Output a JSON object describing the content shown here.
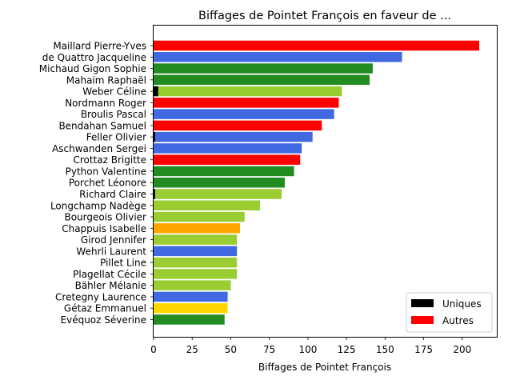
{
  "chart_data": {
    "type": "bar",
    "orientation": "horizontal",
    "title": "Biffages de Pointet François en faveur de ...",
    "xlabel": "Biffages de Pointet François",
    "ylabel": "",
    "xlim": [
      0,
      220
    ],
    "xticks": [
      0,
      25,
      50,
      75,
      100,
      125,
      150,
      175,
      200
    ],
    "grid": false,
    "legend_position": "bottom-right",
    "legend": [
      {
        "label": "Uniques",
        "color": "#000000"
      },
      {
        "label": "Autres",
        "color": "#ff0000"
      }
    ],
    "categories": [
      "Maillard Pierre-Yves",
      "de Quattro Jacqueline",
      "Michaud Gigon Sophie",
      "Mahaim Raphaël",
      "Weber Céline",
      "Nordmann Roger",
      "Broulis Pascal",
      "Bendahan Samuel",
      "Feller Olivier",
      "Aschwanden Sergei",
      "Crottaz Brigitte",
      "Python Valentine",
      "Porchet Léonore",
      "Richard Claire",
      "Longchamp Nadège",
      "Bourgeois Olivier",
      "Chappuis Isabelle",
      "Girod Jennifer",
      "Wehrli Laurent",
      "Pillet Line",
      "Plagellat Cécile",
      "Bähler Mélanie",
      "Cretegny Laurence",
      "Gétaz Emmanuel",
      "Evéquoz Séverine"
    ],
    "series": [
      {
        "name": "Uniques",
        "values": [
          0,
          0,
          0,
          0,
          3,
          0,
          0,
          0,
          1,
          0,
          0,
          0,
          0,
          1,
          0,
          0,
          0,
          0,
          0,
          0,
          0,
          0,
          0,
          0,
          0
        ]
      },
      {
        "name": "Autres",
        "values": [
          211,
          161,
          142,
          140,
          119,
          120,
          117,
          109,
          102,
          96,
          95,
          91,
          85,
          82,
          69,
          59,
          56,
          54,
          54,
          54,
          54,
          50,
          48,
          48,
          46
        ]
      }
    ],
    "bar_colors": [
      "#ff0000",
      "#4169e1",
      "#228b22",
      "#228b22",
      "#9acd32",
      "#ff0000",
      "#4169e1",
      "#ff0000",
      "#4169e1",
      "#4169e1",
      "#ff0000",
      "#228b22",
      "#228b22",
      "#9acd32",
      "#9acd32",
      "#9acd32",
      "#ffa500",
      "#9acd32",
      "#4169e1",
      "#9acd32",
      "#9acd32",
      "#9acd32",
      "#4169e1",
      "#ffd700",
      "#228b22"
    ]
  }
}
